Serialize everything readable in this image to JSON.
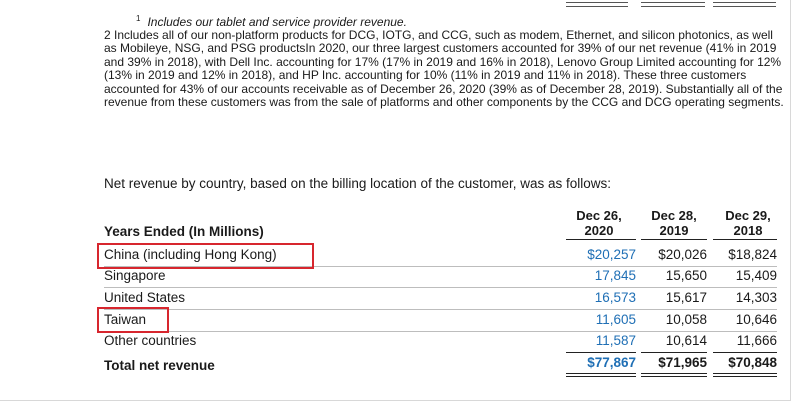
{
  "footnotes": {
    "fn1_marker": "1",
    "fn1_text": "Includes our tablet and service provider revenue.",
    "fn2_text": "2  Includes all of our non-platform products for DCG, IOTG, and CCG, such as modem, Ethernet, and silicon photonics, as well as Mobileye, NSG, and PSG productsIn 2020, our three largest customers accounted for 39% of our net revenue (41% in 2019 and 39% in 2018), with Dell Inc. accounting for 17% (17% in 2019 and 16% in 2018), Lenovo Group Limited accounting for 12% (13% in 2019 and 12% in 2018), and HP Inc. accounting for 10% (11% in 2019 and 11% in 2018). These three customers accounted for 43% of our accounts receivable as of December 26, 2020 (39% as of December 28, 2019). Substantially all of the revenue from these customers was from the sale of platforms and other components by the CCG and DCG operating segments."
  },
  "intro": "Net revenue by country, based on the billing location of the customer, was as follows:",
  "table": {
    "row_header": "Years Ended (In Millions)",
    "columns": [
      {
        "line1": "Dec 26,",
        "line2": "2020"
      },
      {
        "line1": "Dec 28,",
        "line2": "2019"
      },
      {
        "line1": "Dec 29,",
        "line2": "2018"
      }
    ],
    "rows": [
      {
        "label": "China (including Hong Kong)",
        "v2020": "$20,257",
        "v2019": "$20,026",
        "v2018": "$18,824"
      },
      {
        "label": "Singapore",
        "v2020": "17,845",
        "v2019": "15,650",
        "v2018": "15,409"
      },
      {
        "label": "United States",
        "v2020": "16,573",
        "v2019": "15,617",
        "v2018": "14,303"
      },
      {
        "label": "Taiwan",
        "v2020": "11,605",
        "v2019": "10,058",
        "v2018": "10,646"
      },
      {
        "label": "Other countries",
        "v2020": "11,587",
        "v2019": "10,614",
        "v2018": "11,666"
      }
    ],
    "total": {
      "label": "Total net revenue",
      "v2020": "$77,867",
      "v2019": "$71,965",
      "v2018": "$70,848"
    }
  },
  "colors": {
    "current_year": "#1f6fb5",
    "highlight_box": "#d7262e"
  }
}
